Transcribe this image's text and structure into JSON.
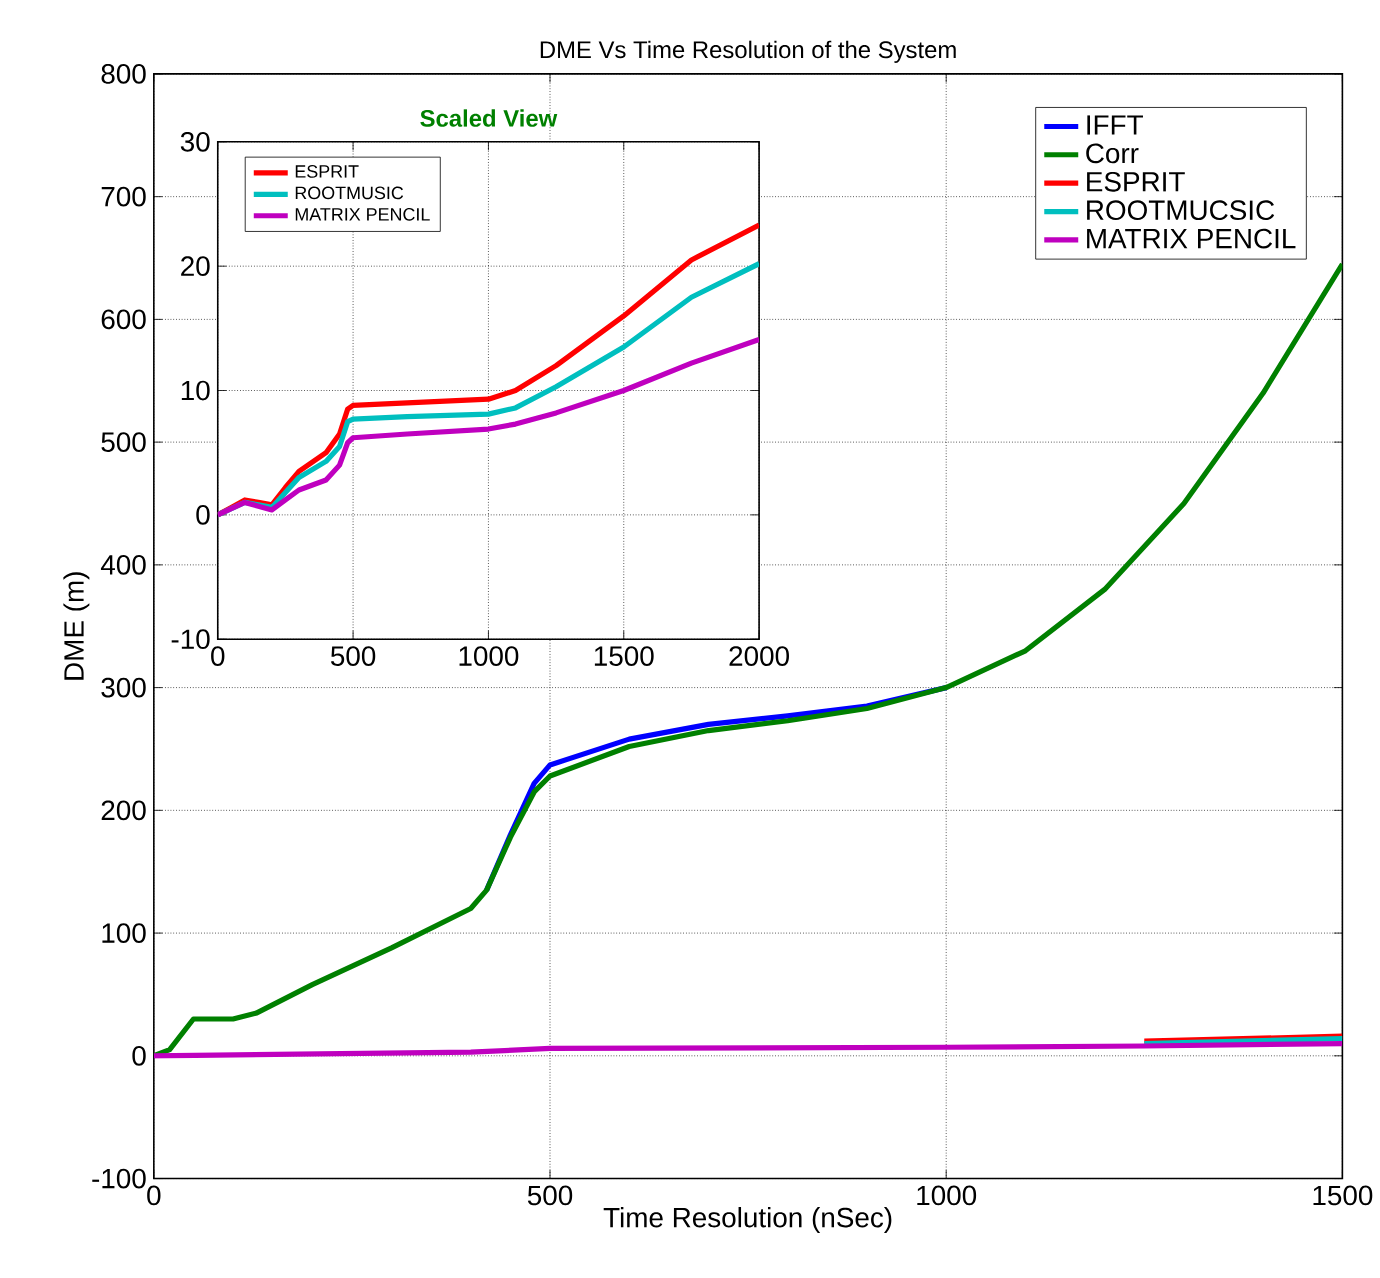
{
  "chart_data": [
    {
      "type": "line",
      "title": "DME Vs Time Resolution of the System",
      "xlabel": "Time Resolution (nSec)",
      "ylabel": "DME (m)",
      "x": [
        0,
        20,
        50,
        100,
        130,
        200,
        300,
        400,
        420,
        450,
        480,
        500,
        600,
        700,
        800,
        900,
        1000,
        1100,
        1200,
        1300,
        1400,
        1500
      ],
      "series": [
        {
          "name": "IFFT",
          "color": "#0000ff",
          "values": [
            null,
            null,
            null,
            null,
            null,
            null,
            null,
            null,
            135,
            180,
            222,
            237,
            258,
            270,
            277,
            285,
            300,
            null,
            null,
            null,
            null,
            null
          ]
        },
        {
          "name": "Corr",
          "color": "#008000",
          "values": [
            0,
            5,
            30,
            30,
            35,
            58,
            88,
            120,
            135,
            178,
            215,
            228,
            252,
            265,
            273,
            283,
            300,
            330,
            380,
            450,
            540,
            645
          ]
        },
        {
          "name": "ESPRIT",
          "color": "#ff0000",
          "x": [
            1250,
            1500
          ],
          "values": [
            12,
            16
          ]
        },
        {
          "name": "ROOTMUCSIC",
          "color": "#00bfbf",
          "x": [
            1250,
            1500
          ],
          "values": [
            10,
            14
          ]
        },
        {
          "name": "MATRIX PENCIL",
          "color": "#bf00bf",
          "x": [
            0,
            400,
            500,
            1000,
            1250,
            1500
          ],
          "values": [
            0,
            3,
            6,
            7,
            8,
            10
          ]
        }
      ],
      "xlim": [
        0,
        1500
      ],
      "ylim": [
        -100,
        800
      ],
      "xticks": [
        0,
        500,
        1000,
        1500
      ],
      "yticks": [
        -100,
        0,
        100,
        200,
        300,
        400,
        500,
        600,
        700,
        800
      ],
      "grid": true,
      "legend": "top right"
    },
    {
      "type": "line",
      "title": "Scaled View",
      "x": [
        0,
        50,
        100,
        150,
        200,
        250,
        300,
        400,
        450,
        480,
        500,
        700,
        1000,
        1100,
        1250,
        1500,
        1750,
        2000
      ],
      "series": [
        {
          "name": "ESPRIT",
          "color": "#ff0000",
          "values": [
            0,
            0.6,
            1.2,
            1,
            0.8,
            2.2,
            3.5,
            5,
            6.5,
            8.5,
            8.8,
            9,
            9.3,
            10,
            12,
            16,
            20.5,
            23.3
          ]
        },
        {
          "name": "ROOTMUSIC",
          "color": "#00bfbf",
          "values": [
            0,
            0.5,
            1,
            0.8,
            0.6,
            1.8,
            3,
            4.3,
            5.5,
            7.5,
            7.7,
            7.9,
            8.1,
            8.6,
            10.3,
            13.5,
            17.5,
            20.2
          ]
        },
        {
          "name": "MATRIX PENCIL",
          "color": "#bf00bf",
          "values": [
            0,
            0.5,
            1,
            0.7,
            0.4,
            1.2,
            2,
            2.8,
            4,
            5.8,
            6.2,
            6.5,
            6.9,
            7.3,
            8.2,
            10,
            12.2,
            14.1
          ]
        }
      ],
      "xlim": [
        0,
        2000
      ],
      "ylim": [
        -10,
        30
      ],
      "xticks": [
        0,
        500,
        1000,
        1500,
        2000
      ],
      "yticks": [
        -10,
        0,
        10,
        20,
        30
      ],
      "grid": true,
      "legend": "top left"
    }
  ]
}
